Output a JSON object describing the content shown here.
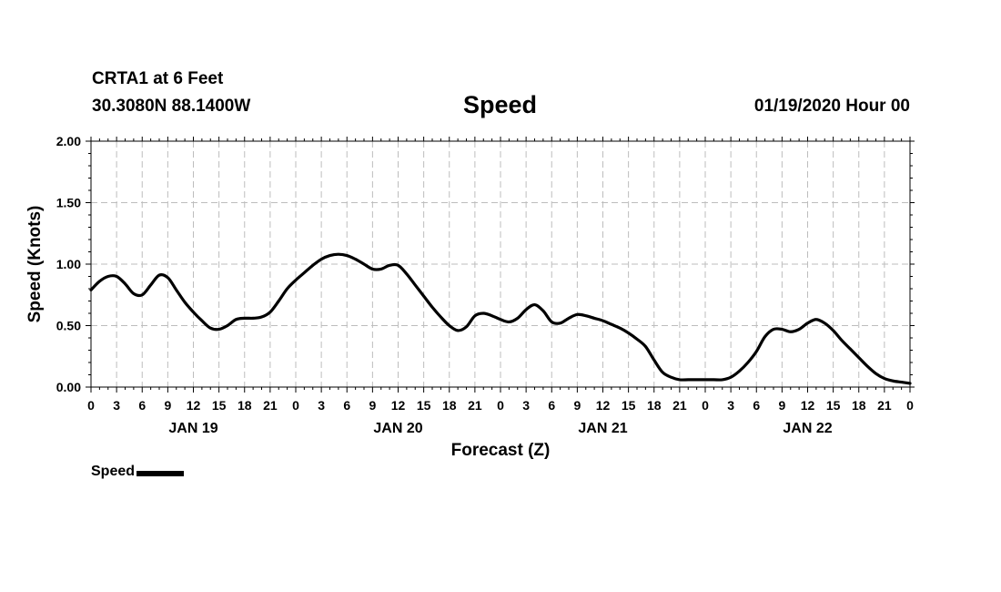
{
  "header": {
    "station": "CRTA1 at 6 Feet",
    "coords": "30.3080N 88.1400W",
    "title": "Speed",
    "datetime": "01/19/2020 Hour 00"
  },
  "legend": {
    "label": "Speed"
  },
  "chart_data": {
    "type": "line",
    "title": "Speed",
    "xlabel": "Forecast (Z)",
    "ylabel": "Speed (Knots)",
    "ylim": [
      0,
      2
    ],
    "xlim": [
      0,
      96
    ],
    "grid": true,
    "yticks": [
      0,
      0.5,
      1,
      1.5,
      2
    ],
    "ytick_labels": [
      "0.00",
      "0.50",
      "1.00",
      "1.50",
      "2.00"
    ],
    "xtick_hours": [
      0,
      3,
      6,
      9,
      12,
      15,
      18,
      21,
      24,
      27,
      30,
      33,
      36,
      39,
      42,
      45,
      48,
      51,
      54,
      57,
      60,
      63,
      66,
      69,
      72,
      75,
      78,
      81,
      84,
      87,
      90,
      93,
      96
    ],
    "xtick_labels": [
      "0",
      "3",
      "6",
      "9",
      "12",
      "15",
      "18",
      "21",
      "0",
      "3",
      "6",
      "9",
      "12",
      "15",
      "18",
      "21",
      "0",
      "3",
      "6",
      "9",
      "12",
      "15",
      "18",
      "21",
      "0",
      "3",
      "6",
      "9",
      "12",
      "15",
      "18",
      "21",
      "0"
    ],
    "day_labels": [
      {
        "label": "JAN 19",
        "hour": 12
      },
      {
        "label": "JAN 20",
        "hour": 36
      },
      {
        "label": "JAN 21",
        "hour": 60
      },
      {
        "label": "JAN 22",
        "hour": 84
      }
    ],
    "series": [
      {
        "name": "Speed",
        "color": "#000000",
        "x": [
          0,
          1,
          2,
          3,
          4,
          5,
          6,
          7,
          8,
          9,
          10,
          11,
          12,
          13,
          14,
          15,
          16,
          17,
          18,
          19,
          20,
          21,
          22,
          23,
          24,
          25,
          26,
          27,
          28,
          29,
          30,
          31,
          32,
          33,
          34,
          35,
          36,
          37,
          38,
          39,
          40,
          41,
          42,
          43,
          44,
          45,
          46,
          47,
          48,
          49,
          50,
          51,
          52,
          53,
          54,
          55,
          56,
          57,
          58,
          59,
          60,
          61,
          62,
          63,
          64,
          65,
          66,
          67,
          68,
          69,
          70,
          71,
          72,
          73,
          74,
          75,
          76,
          77,
          78,
          79,
          80,
          81,
          82,
          83,
          84,
          85,
          86,
          87,
          88,
          89,
          90,
          91,
          92,
          93,
          94,
          95,
          96
        ],
        "values": [
          0.79,
          0.86,
          0.9,
          0.9,
          0.84,
          0.76,
          0.75,
          0.83,
          0.91,
          0.89,
          0.79,
          0.69,
          0.61,
          0.54,
          0.48,
          0.47,
          0.5,
          0.55,
          0.56,
          0.56,
          0.57,
          0.61,
          0.7,
          0.8,
          0.87,
          0.93,
          0.99,
          1.04,
          1.07,
          1.08,
          1.07,
          1.04,
          1.0,
          0.96,
          0.96,
          0.99,
          0.99,
          0.92,
          0.83,
          0.74,
          0.65,
          0.57,
          0.5,
          0.46,
          0.49,
          0.58,
          0.6,
          0.58,
          0.55,
          0.53,
          0.56,
          0.63,
          0.67,
          0.62,
          0.53,
          0.52,
          0.56,
          0.59,
          0.58,
          0.56,
          0.54,
          0.51,
          0.48,
          0.44,
          0.39,
          0.33,
          0.22,
          0.12,
          0.08,
          0.06,
          0.06,
          0.06,
          0.06,
          0.06,
          0.06,
          0.08,
          0.13,
          0.2,
          0.29,
          0.41,
          0.47,
          0.47,
          0.45,
          0.47,
          0.52,
          0.55,
          0.52,
          0.46,
          0.38,
          0.31,
          0.24,
          0.17,
          0.11,
          0.07,
          0.05,
          0.04,
          0.03
        ]
      }
    ]
  }
}
